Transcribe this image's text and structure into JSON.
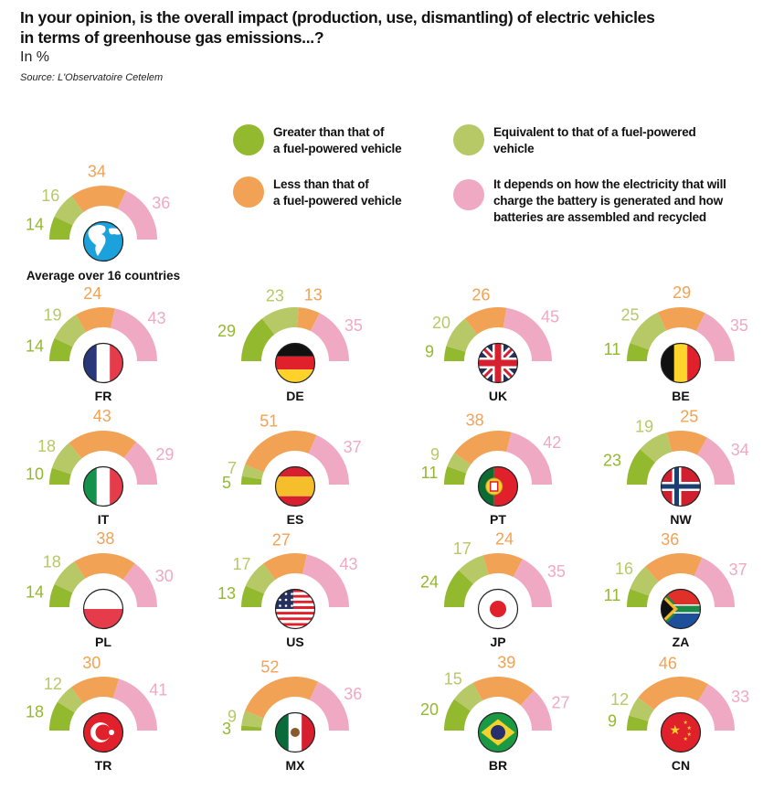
{
  "header": {
    "title_line1": "In your opinion, is the overall impact (production, use, dismantling) of electric vehicles",
    "title_line2": "in terms of greenhouse gas emissions...?",
    "unit": "In %",
    "source": "Source: L'Observatoire Cetelem"
  },
  "colors": {
    "greater": "#93b92f",
    "equivalent": "#b6c966",
    "less": "#f2a255",
    "depends": "#f0a9c2"
  },
  "legend": [
    {
      "key": "greater",
      "line1": "Greater than that of",
      "line2": "a fuel-powered vehicle",
      "line3": ""
    },
    {
      "key": "equivalent",
      "line1": "Equivalent to that of a fuel-powered",
      "line2": "vehicle",
      "line3": ""
    },
    {
      "key": "less",
      "line1": "Less than that of",
      "line2": "a fuel-powered vehicle",
      "line3": ""
    },
    {
      "key": "depends",
      "line1": "It depends on how the electricity that will",
      "line2": "charge the battery is generated and how",
      "line3": "batteries are assembled and recycled"
    }
  ],
  "chart_data": {
    "type": "semi-donut",
    "title": "In your opinion, is the overall impact (production, use, dismantling) of electric vehicles in terms of greenhouse gas emissions...?",
    "unit": "%",
    "series_order": [
      "Greater than that of a fuel-powered vehicle",
      "Equivalent to that of a fuel-powered vehicle",
      "Less than that of a fuel-powered vehicle",
      "It depends on how the electricity that will charge the battery is generated and how batteries are assembled and recycled"
    ],
    "average": {
      "label": "Average over 16 countries",
      "icon": "globe-icon",
      "values": [
        14,
        16,
        34,
        36
      ]
    },
    "countries": [
      {
        "code": "FR",
        "flag": "france-flag-icon",
        "values": [
          14,
          19,
          24,
          43
        ]
      },
      {
        "code": "DE",
        "flag": "germany-flag-icon",
        "values": [
          29,
          23,
          13,
          35
        ]
      },
      {
        "code": "UK",
        "flag": "uk-flag-icon",
        "values": [
          9,
          20,
          26,
          45
        ]
      },
      {
        "code": "BE",
        "flag": "belgium-flag-icon",
        "values": [
          11,
          25,
          29,
          35
        ]
      },
      {
        "code": "IT",
        "flag": "italy-flag-icon",
        "values": [
          10,
          18,
          43,
          29
        ]
      },
      {
        "code": "ES",
        "flag": "spain-flag-icon",
        "values": [
          5,
          7,
          51,
          37
        ]
      },
      {
        "code": "PT",
        "flag": "portugal-flag-icon",
        "values": [
          11,
          9,
          38,
          42
        ]
      },
      {
        "code": "NW",
        "flag": "norway-flag-icon",
        "values": [
          23,
          19,
          25,
          34
        ]
      },
      {
        "code": "PL",
        "flag": "poland-flag-icon",
        "values": [
          14,
          18,
          38,
          30
        ]
      },
      {
        "code": "US",
        "flag": "usa-flag-icon",
        "values": [
          13,
          17,
          27,
          43
        ]
      },
      {
        "code": "JP",
        "flag": "japan-flag-icon",
        "values": [
          24,
          17,
          24,
          35
        ]
      },
      {
        "code": "ZA",
        "flag": "south-africa-flag-icon",
        "values": [
          11,
          16,
          36,
          37
        ]
      },
      {
        "code": "TR",
        "flag": "turkey-flag-icon",
        "values": [
          18,
          12,
          30,
          41
        ]
      },
      {
        "code": "MX",
        "flag": "mexico-flag-icon",
        "values": [
          3,
          9,
          52,
          36
        ]
      },
      {
        "code": "BR",
        "flag": "brazil-flag-icon",
        "values": [
          20,
          15,
          39,
          27
        ]
      },
      {
        "code": "CN",
        "flag": "china-flag-icon",
        "values": [
          9,
          12,
          46,
          33
        ]
      }
    ]
  }
}
